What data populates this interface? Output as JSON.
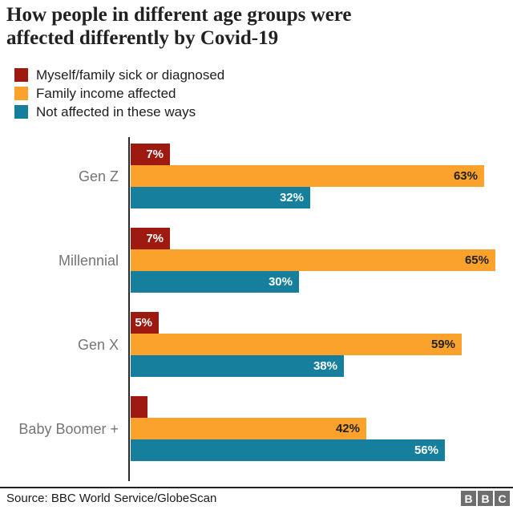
{
  "title": {
    "line1": "How people in different age groups were",
    "line2": "affected differently by Covid-19"
  },
  "legend": {
    "items": [
      {
        "label": "Myself/family sick or diagnosed",
        "color": "#9e1a10"
      },
      {
        "label": "Family income affected",
        "color": "#fba22c"
      },
      {
        "label": "Not affected in these ways",
        "color": "#157f9d"
      }
    ]
  },
  "chart_data": {
    "type": "bar",
    "orientation": "horizontal",
    "title": "How people in different age groups were affected differently by Covid-19",
    "categories": [
      "Gen Z",
      "Millennial",
      "Gen X",
      "Baby Boomer +"
    ],
    "series": [
      {
        "name": "Myself/family sick or diagnosed",
        "color": "#9e1a10",
        "label_color": "#ffffff",
        "values": [
          7,
          7,
          5,
          3
        ],
        "labels": [
          "7%",
          "7%",
          "5%",
          ""
        ]
      },
      {
        "name": "Family income affected",
        "color": "#fba22c",
        "label_color": "#222222",
        "values": [
          63,
          65,
          59,
          42
        ],
        "labels": [
          "63%",
          "65%",
          "59%",
          "42%"
        ]
      },
      {
        "name": "Not affected in these ways",
        "color": "#157f9d",
        "label_color": "#ffffff",
        "values": [
          32,
          30,
          38,
          56
        ],
        "labels": [
          "32%",
          "30%",
          "38%",
          "56%"
        ]
      }
    ],
    "value_unit": "%",
    "xlim": [
      0,
      65
    ],
    "grid": false,
    "legend_position": "top-left",
    "axis_color": "#2b2b2b"
  },
  "footer": {
    "source": "Source: BBC World Service/GlobeScan",
    "logo_letters": [
      "B",
      "B",
      "C"
    ]
  }
}
